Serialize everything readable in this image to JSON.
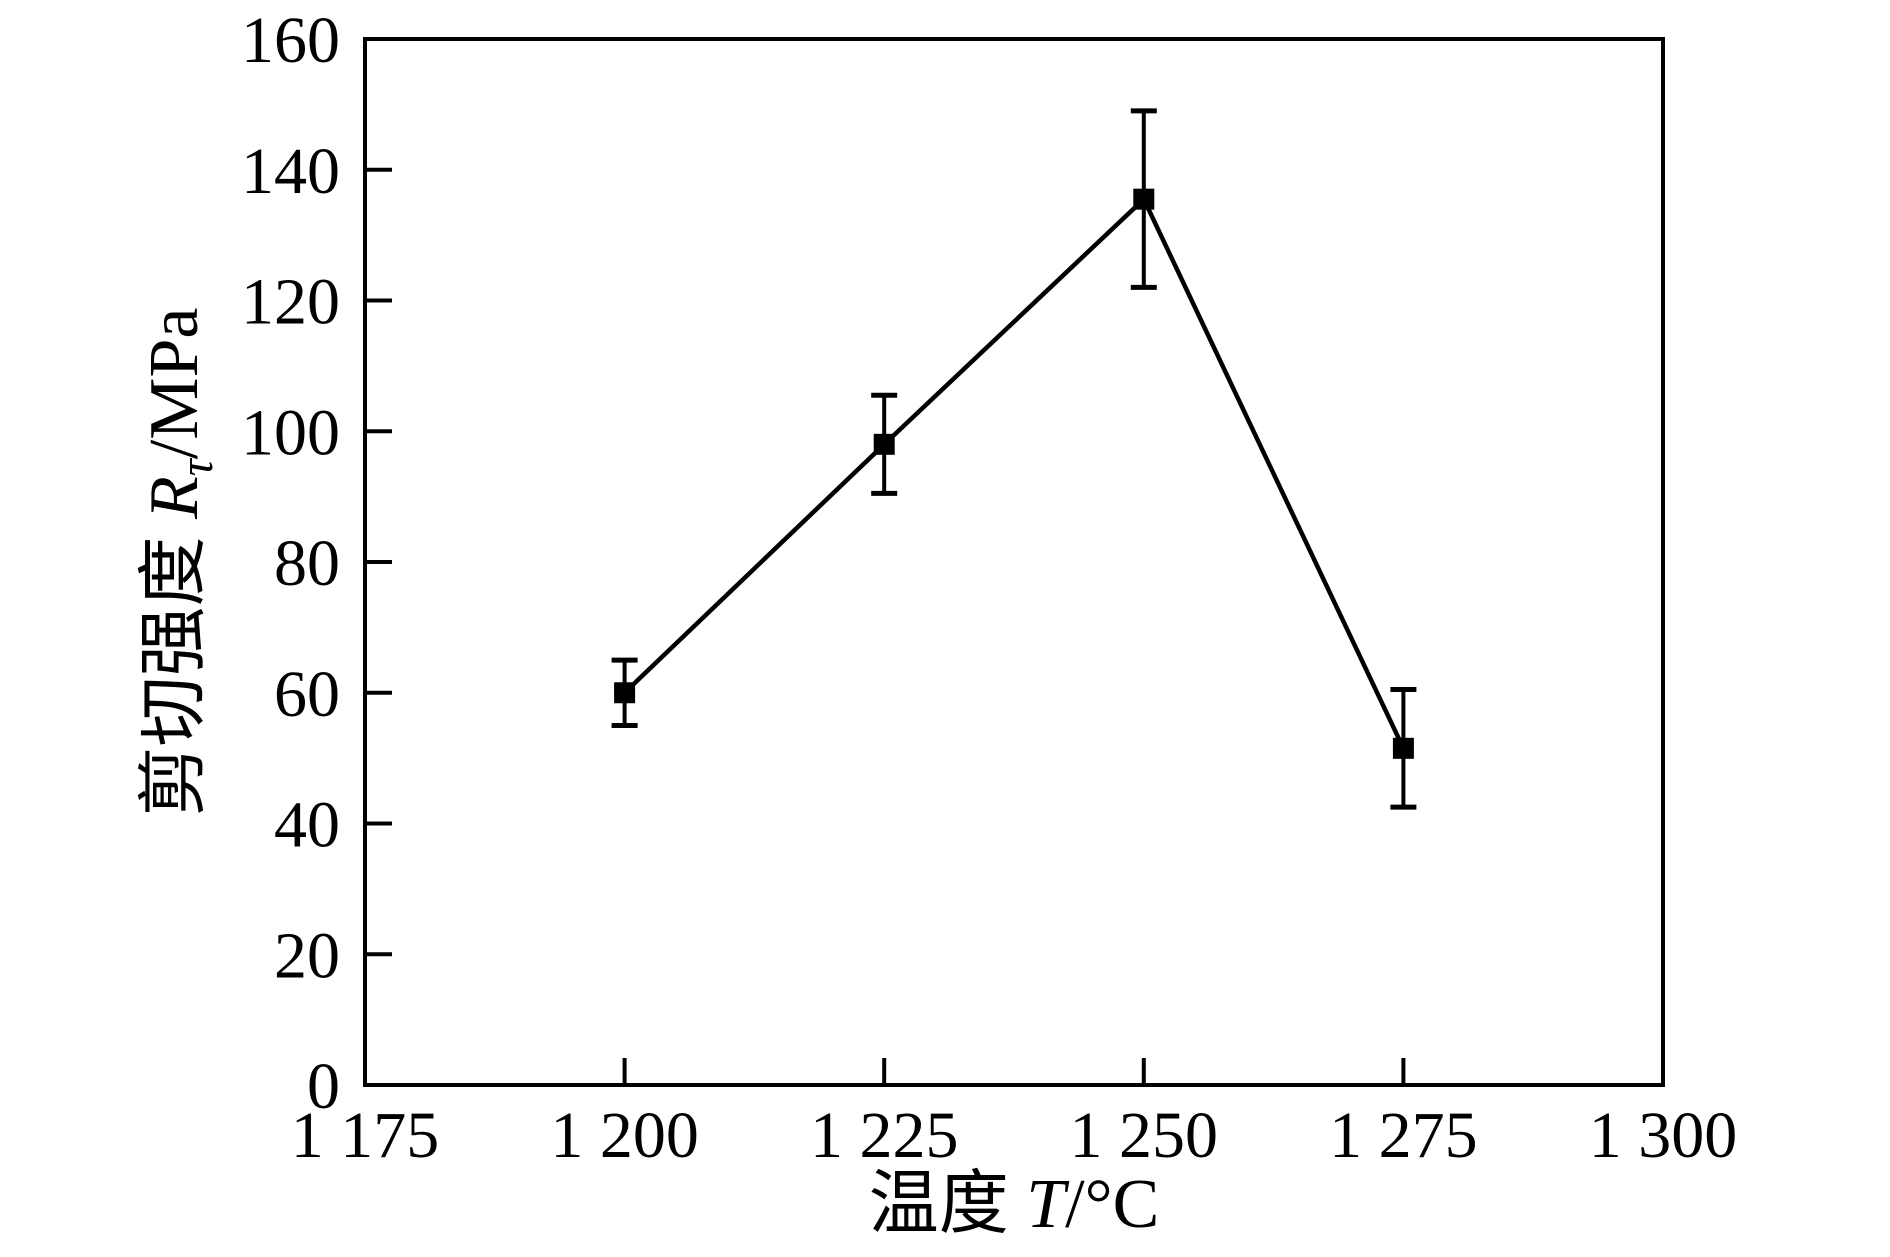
{
  "figure": {
    "background_color": "#ffffff",
    "foreground_color": "#000000"
  },
  "chart_data": {
    "type": "line",
    "x": [
      1200,
      1225,
      1250,
      1275
    ],
    "series": [
      {
        "name": "shear-strength",
        "values": [
          60,
          98,
          135.5,
          51.5
        ],
        "yerr": [
          5,
          7.5,
          13.5,
          9
        ],
        "marker": "filled-square",
        "color": "#000000"
      }
    ],
    "xlabel": {
      "prefix": "温度 ",
      "symbol": "T",
      "suffix": "/°C"
    },
    "ylabel": {
      "prefix": "剪切强度 ",
      "symbol": "R",
      "subscript": "τ",
      "suffix": "/MPa"
    },
    "xlim": [
      1175,
      1300
    ],
    "ylim": [
      0,
      160
    ],
    "xticks": {
      "values": [
        1175,
        1200,
        1225,
        1250,
        1275,
        1300
      ],
      "labels": [
        "1 175",
        "1 200",
        "1 225",
        "1 250",
        "1 275",
        "1 300"
      ]
    },
    "yticks": {
      "values": [
        0,
        20,
        40,
        60,
        80,
        100,
        120,
        140,
        160
      ],
      "labels": [
        "0",
        "20",
        "40",
        "60",
        "80",
        "100",
        "120",
        "140",
        "160"
      ]
    },
    "grid": false,
    "legend": null,
    "tick_direction": "in"
  }
}
